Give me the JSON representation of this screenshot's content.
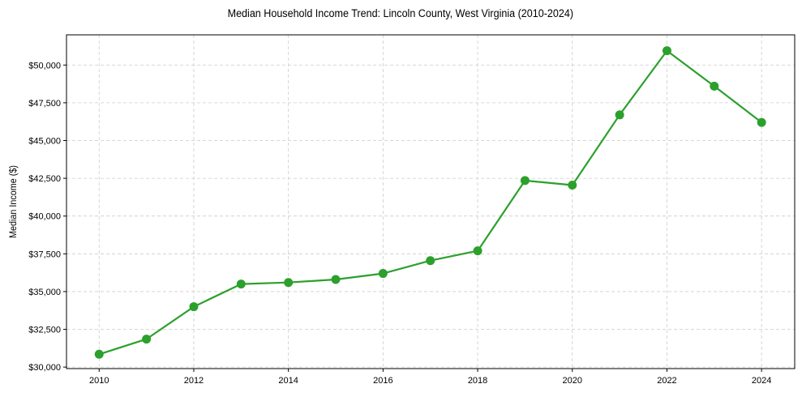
{
  "chart_data": {
    "type": "line",
    "title": "Median Household Income Trend: Lincoln County, West Virginia (2010-2024)",
    "xlabel": "",
    "ylabel": "Median Income ($)",
    "x": [
      2010,
      2011,
      2012,
      2013,
      2014,
      2015,
      2016,
      2017,
      2018,
      2019,
      2020,
      2021,
      2022,
      2023,
      2024
    ],
    "series": [
      {
        "name": "Median Household Income",
        "color": "#2ca02c",
        "marker": "circle",
        "values": [
          30850,
          31850,
          34000,
          35500,
          35600,
          35800,
          36200,
          37050,
          37700,
          42350,
          42050,
          46700,
          50950,
          48600,
          46200
        ]
      }
    ],
    "xlim": [
      2009.31,
      2024.7
    ],
    "ylim": [
      29900,
      52000
    ],
    "x_ticks": [
      2010,
      2012,
      2014,
      2016,
      2018,
      2020,
      2022,
      2024
    ],
    "x_tick_labels": [
      "2010",
      "2012",
      "2014",
      "2016",
      "2018",
      "2020",
      "2022",
      "2024"
    ],
    "y_ticks": [
      30000,
      32500,
      35000,
      37500,
      40000,
      42500,
      45000,
      47500,
      50000
    ],
    "y_tick_labels": [
      "$30,000",
      "$32,500",
      "$35,000",
      "$37,500",
      "$40,000",
      "$42,500",
      "$45,000",
      "$47,500",
      "$50,000"
    ],
    "grid": true,
    "grid_style": "dashed",
    "legend": false
  }
}
